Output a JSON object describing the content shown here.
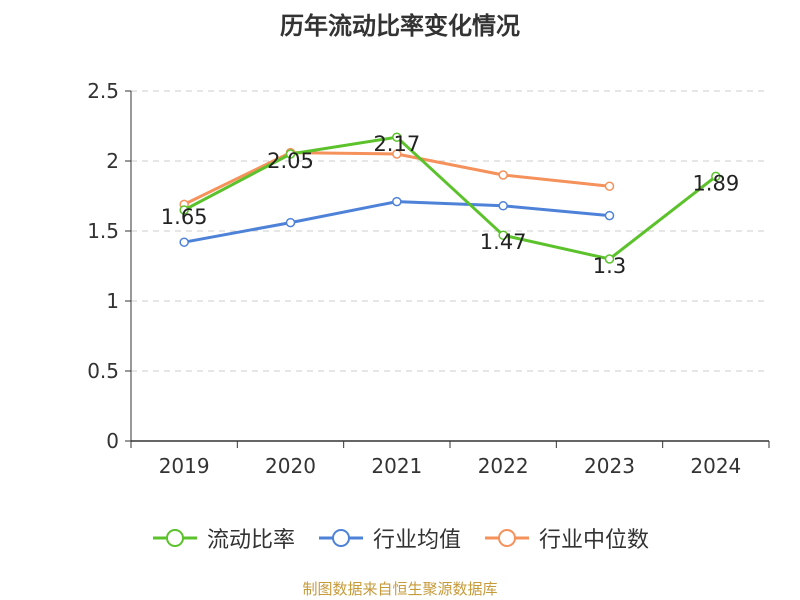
{
  "chart_data": {
    "type": "line",
    "title": "历年流动比率变化情况",
    "categories": [
      "2019",
      "2020",
      "2021",
      "2022",
      "2023",
      "2024"
    ],
    "ylim": [
      0,
      2.5
    ],
    "yticks": [
      "0",
      "0.5",
      "1",
      "1.5",
      "2",
      "2.5"
    ],
    "grid": true,
    "legend_position": "bottom",
    "series": [
      {
        "name": "流动比率",
        "color": "#5cc22c",
        "values": [
          1.65,
          2.05,
          2.17,
          1.47,
          1.3,
          1.89
        ],
        "labels": [
          "1.65",
          "2.05",
          "2.17",
          "1.47",
          "1.3",
          "1.89"
        ]
      },
      {
        "name": "行业均值",
        "color": "#4e82d9",
        "values": [
          1.42,
          1.56,
          1.71,
          1.68,
          1.61,
          null
        ]
      },
      {
        "name": "行业中位数",
        "color": "#f5915a",
        "values": [
          1.69,
          2.06,
          2.05,
          1.9,
          1.82,
          null
        ]
      }
    ],
    "source": "制图数据来自恒生聚源数据库"
  }
}
